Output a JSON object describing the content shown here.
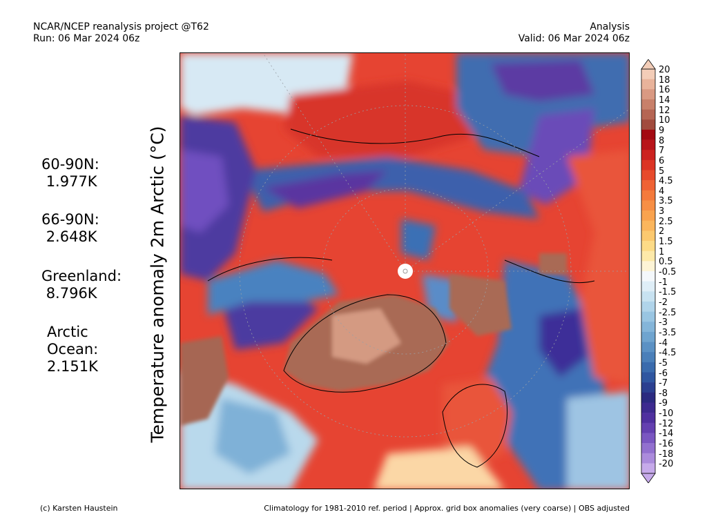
{
  "header": {
    "line1_left": "NCAR/NCEP reanalysis project @T62",
    "line2_left": "Run: 06 Mar 2024 06z",
    "line1_right": "Analysis",
    "line2_right": "Valid: 06 Mar 2024 06z"
  },
  "y_label": "Temperature anomaly 2m Arctic (°C)",
  "stats": [
    {
      "label": "60-90N:",
      "value": "1.977K"
    },
    {
      "label": "66-90N:",
      "value": "2.648K"
    },
    {
      "label": "Greenland:",
      "value": "8.796K"
    },
    {
      "label": "Arctic\nOcean:",
      "value": "2.151K"
    }
  ],
  "colorbar": {
    "labels": [
      "20",
      "18",
      "16",
      "14",
      "12",
      "10",
      "9",
      "8",
      "7",
      "6",
      "5",
      "4.5",
      "4",
      "3.5",
      "3",
      "2.5",
      "2",
      "1.5",
      "1",
      "0.5",
      "-0.5",
      "-1",
      "-1.5",
      "-2",
      "-2.5",
      "-3",
      "-3.5",
      "-4",
      "-4.5",
      "-5",
      "-6",
      "-7",
      "-8",
      "-9",
      "-10",
      "-12",
      "-14",
      "-16",
      "-18",
      "-20"
    ],
    "colors": [
      "#f3cdb8",
      "#e8b39b",
      "#d99982",
      "#c8806a",
      "#b56553",
      "#a14b3e",
      "#a30a12",
      "#b8141a",
      "#cc2220",
      "#dc3424",
      "#e74a2c",
      "#ef6234",
      "#f47a3c",
      "#f78f45",
      "#f9a34f",
      "#fbb65d",
      "#fcc96f",
      "#fddb87",
      "#fde9a9",
      "#fdf4d6",
      "#f4f8fb",
      "#dfeef7",
      "#c8e2f1",
      "#b0d4ea",
      "#99c5e2",
      "#84b5d9",
      "#6fa4cf",
      "#5b91c4",
      "#4a7fb9",
      "#3a6bad",
      "#2f56a0",
      "#2b3f90",
      "#2b2a80",
      "#3d2a8f",
      "#4f309f",
      "#6440b0",
      "#7a56c1",
      "#9270cf",
      "#ab8bdc",
      "#c6aaea"
    ]
  },
  "footer": {
    "left": "(c) Karsten Haustein",
    "right": "Climatology for 1981-2010 ref. period | Approx. grid box anomalies (very coarse) | OBS adjusted"
  }
}
